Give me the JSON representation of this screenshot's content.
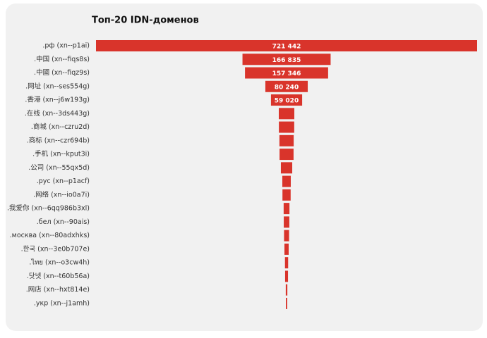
{
  "chart_data": {
    "type": "funnel",
    "title": "Топ-20 IDN-доменов",
    "color": "#d9342b",
    "categories": [
      ".рф (xn--p1ai)",
      ".中国 (xn--fiqs8s)",
      ".中國 (xn--fiqz9s)",
      ".网址 (xn--ses554g)",
      ".香港 (xn--j6w193g)",
      ".在线 (xn--3ds443g)",
      ".商城 (xn--czru2d)",
      ".商标 (xn--czr694b)",
      ".手机 (xn--kput3i)",
      ".公司 (xn--55qx5d)",
      ".рус (xn--p1acf)",
      ".网络 (xn--io0a7i)",
      ".我爱你 (xn--6qq986b3xl)",
      ".бел (xn--90ais)",
      ".москва (xn--80adxhks)",
      ".한국 (xn--3e0b707e)",
      ".ไทย (xn--o3cw4h)",
      ".닷넷 (xn--t60b56a)",
      ".网店 (xn--hxt814e)",
      ".укр (xn--j1amh)"
    ],
    "values": [
      721442,
      166835,
      157346,
      80240,
      59020,
      29400,
      29000,
      27000,
      26500,
      21500,
      16000,
      15500,
      11000,
      10500,
      9500,
      8000,
      6000,
      5500,
      3000,
      2500
    ],
    "value_labels": [
      "721 442",
      "166 835",
      "157 346",
      "80 240",
      "59 020",
      null,
      null,
      null,
      null,
      null,
      null,
      null,
      null,
      null,
      null,
      null,
      null,
      null,
      null,
      null
    ]
  }
}
